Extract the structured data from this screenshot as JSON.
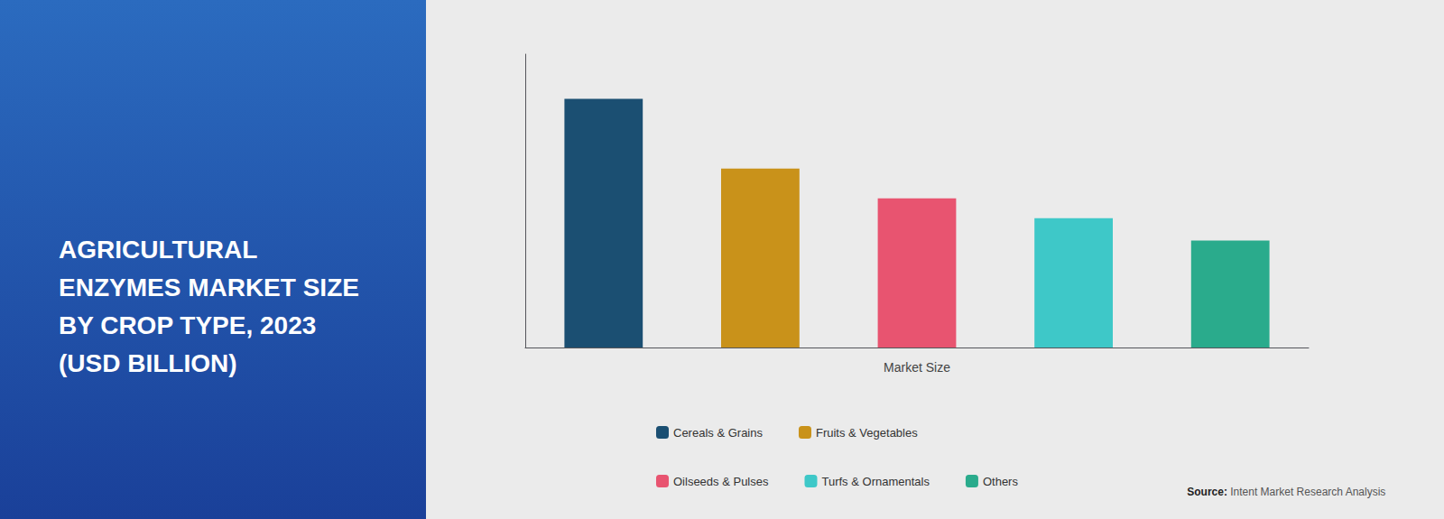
{
  "chart_data": {
    "type": "bar",
    "title": "AGRICULTURAL\nENZYMES MARKET SIZE\nBY CROP TYPE, 2023\n(USD BILLION)",
    "xlabel": "Market Size",
    "categories": [
      "Cereals & Grains",
      "Fruits & Vegetables",
      "Oilseeds & Pulses",
      "Turfs & Ornamentals",
      "Others"
    ],
    "values": [
      100,
      72,
      60,
      52,
      43
    ],
    "colors": [
      "#1b4f72",
      "#c9921a",
      "#e85470",
      "#3ec8c8",
      "#2aab8c"
    ],
    "ylim": [
      0,
      118
    ],
    "tick_labels": false,
    "grid": false,
    "legend": "bottom",
    "annotations": [
      "Source:",
      "Intent Market Research Analysis"
    ]
  }
}
